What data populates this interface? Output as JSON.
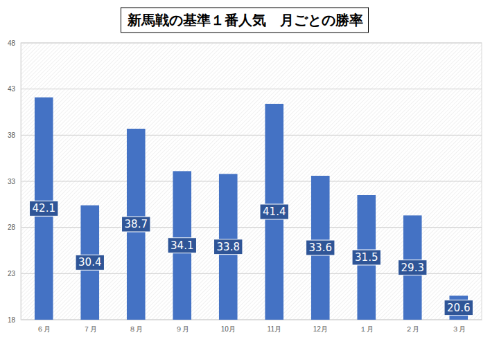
{
  "chart_data": {
    "type": "bar",
    "title": "新馬戦の基準１番人気　月ごとの勝率",
    "categories": [
      "６月",
      "７月",
      "８月",
      "９月",
      "10月",
      "11月",
      "12月",
      "１月",
      "２月",
      "３月"
    ],
    "values": [
      42.1,
      30.4,
      38.7,
      34.1,
      33.8,
      41.4,
      33.6,
      31.5,
      29.3,
      20.6
    ],
    "color": "#4472c4",
    "ylim": [
      18,
      48
    ],
    "yticks": [
      18,
      23,
      28,
      33,
      38,
      43,
      48
    ],
    "grid": true,
    "data_labels": true
  }
}
